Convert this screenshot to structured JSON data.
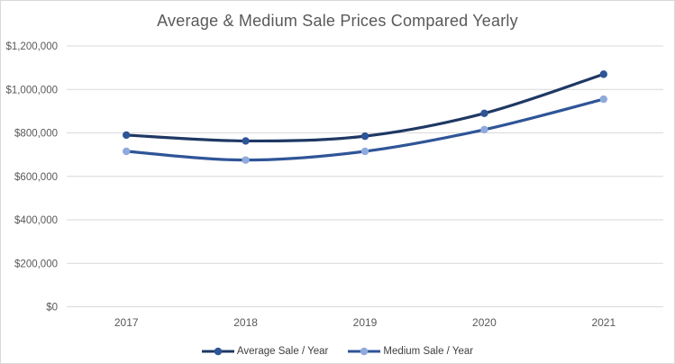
{
  "chart_data": {
    "type": "line",
    "title": "Average & Medium Sale Prices Compared Yearly",
    "categories": [
      "2017",
      "2018",
      "2019",
      "2020",
      "2021"
    ],
    "series": [
      {
        "name": "Average Sale / Year",
        "values": [
          790000,
          763000,
          785000,
          890000,
          1070000
        ],
        "line_color": "#1f3864",
        "marker_color": "#2e5597"
      },
      {
        "name": "Medium Sale / Year",
        "values": [
          715000,
          675000,
          715000,
          815000,
          955000
        ],
        "line_color": "#2f5597",
        "marker_color": "#8faadc"
      }
    ],
    "xlabel": "",
    "ylabel": "",
    "ylim": [
      0,
      1200000
    ],
    "y_tick_step": 200000,
    "y_tick_labels": [
      "$0",
      "$200,000",
      "$400,000",
      "$600,000",
      "$800,000",
      "$1,000,000",
      "$1,200,000"
    ],
    "grid": "horizontal",
    "smooth_lines": true,
    "legend_position": "bottom-center",
    "theme": {
      "background_color": "#ffffff",
      "border_color": "#d9d9d9",
      "gridline_color": "#d9d9d9",
      "axis_line_color": "#d9d9d9",
      "axis_text_color": "#595959",
      "title_color": "#595959",
      "legend_text_color": "#404040"
    }
  }
}
